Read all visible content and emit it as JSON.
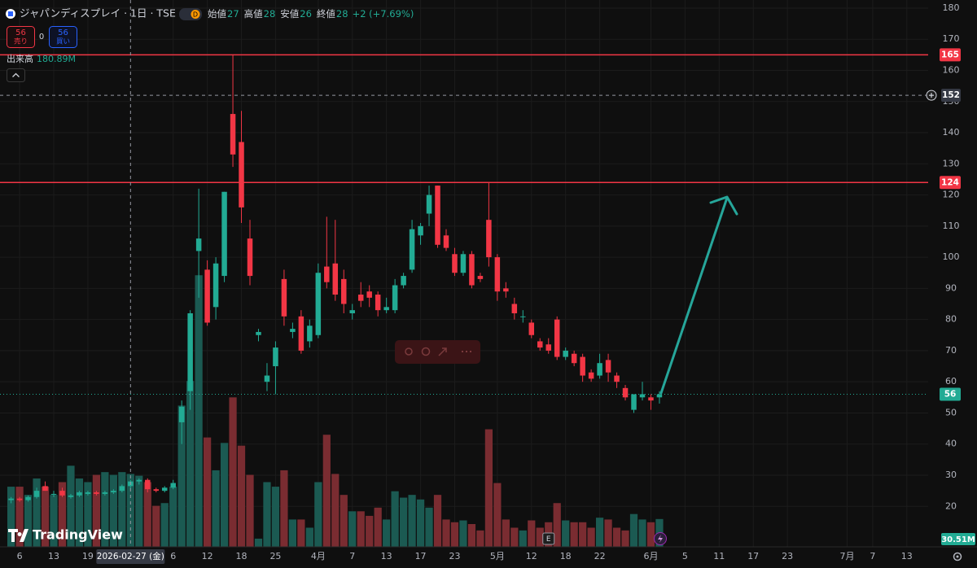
{
  "chart_data": {
    "type": "candlestick",
    "title": "ジャパンディスプレイ · 1日 · TSE",
    "badge": "D",
    "ohlc_legend": [
      {
        "label": "始値",
        "value": "27"
      },
      {
        "label": "高値",
        "value": "28"
      },
      {
        "label": "安値",
        "value": "26"
      },
      {
        "label": "終値",
        "value": "28"
      }
    ],
    "change": "+2 (+7.69%)",
    "order_buttons": {
      "sell_price": "56",
      "sell_label": "売り",
      "spread": "0",
      "buy_price": "56",
      "buy_label": "買い"
    },
    "volume_legend": {
      "label": "出来高",
      "value": "180.89M"
    },
    "open": [
      22,
      22.5,
      22,
      23,
      26.5,
      24,
      25,
      23,
      23.5,
      24,
      24.5,
      24,
      24.5,
      25,
      26.5,
      28,
      28.5,
      25.5,
      25,
      26,
      47,
      57,
      102,
      96,
      84,
      94,
      146,
      137,
      106,
      75,
      60,
      65,
      93,
      76,
      81,
      73,
      75,
      97,
      98,
      93,
      82,
      88,
      89,
      88,
      83,
      83,
      91,
      96,
      107,
      114,
      123,
      107,
      101,
      95,
      101,
      94,
      112,
      100,
      90,
      85,
      81,
      79,
      73,
      72,
      80,
      68,
      69,
      68,
      63,
      62,
      67,
      62,
      58,
      51,
      55,
      55,
      55
    ],
    "high": [
      23,
      23,
      23.5,
      26,
      28,
      25,
      26,
      24,
      25,
      25,
      25,
      25,
      25.5,
      27,
      28.5,
      29,
      29,
      26,
      26.5,
      28.5,
      54,
      83,
      122,
      99,
      100,
      121,
      165,
      147,
      112,
      77,
      66,
      73,
      96,
      79,
      83,
      80,
      98,
      113,
      112,
      96,
      85,
      92,
      91,
      89,
      87,
      93,
      95,
      112,
      111,
      123,
      123,
      109,
      103,
      102,
      102,
      95,
      124,
      101,
      92,
      87,
      83,
      80,
      74,
      74,
      81,
      71,
      70,
      69,
      64,
      69,
      69,
      63,
      59,
      56,
      60,
      56,
      57
    ],
    "low": [
      21,
      21.5,
      21.5,
      22.5,
      25,
      23,
      23,
      22.5,
      23,
      23.5,
      23.5,
      23.5,
      24,
      24.5,
      25.5,
      27,
      24.5,
      24.5,
      24.5,
      25.5,
      40,
      51,
      87,
      78,
      80,
      92,
      129,
      111,
      91,
      73,
      57,
      56,
      78,
      74,
      69,
      71,
      74,
      90,
      86,
      82,
      80,
      84,
      84,
      81,
      82,
      82,
      90,
      95,
      104,
      110,
      103,
      102,
      94,
      94,
      90,
      92,
      97,
      86,
      87,
      80,
      79,
      74,
      70,
      69,
      67,
      67,
      65,
      60,
      60,
      61,
      60,
      58,
      54,
      50,
      54,
      51,
      53
    ],
    "close": [
      22.5,
      22,
      23,
      25,
      25,
      24,
      23.5,
      23.5,
      24.5,
      24.5,
      24,
      24.5,
      25,
      26.5,
      28,
      28.5,
      25.5,
      25,
      26,
      27.5,
      52,
      82,
      106,
      79,
      98,
      121,
      133,
      116,
      94,
      76,
      62,
      71,
      81,
      77,
      70,
      78,
      95,
      92,
      88,
      85,
      83,
      86,
      87,
      83,
      84,
      91,
      94,
      109,
      110,
      120,
      104,
      103,
      95,
      101,
      91,
      93,
      100,
      89,
      89,
      82,
      81,
      75,
      71,
      70,
      68,
      70,
      66,
      62,
      61,
      66,
      63,
      60,
      55,
      56,
      56,
      54,
      56
    ],
    "volume": [
      66,
      66,
      57,
      75,
      66,
      57,
      71,
      89,
      75,
      71,
      79,
      82,
      79,
      82,
      80,
      78,
      71,
      45,
      48,
      66,
      155,
      182,
      298,
      120,
      84,
      114,
      164,
      111,
      79,
      9,
      71,
      66,
      84,
      30,
      30,
      21,
      71,
      123,
      80,
      57,
      39,
      39,
      34,
      43,
      30,
      61,
      54,
      57,
      52,
      43,
      57,
      30,
      27,
      29,
      25,
      18,
      129,
      70,
      30,
      21,
      18,
      29,
      21,
      27,
      48,
      29,
      27,
      27,
      21,
      32,
      30,
      21,
      18,
      36,
      30,
      27,
      30.51
    ],
    "volume_last_label": "30.51M",
    "xlim": [
      -1.3,
      107.5
    ],
    "xticks": [
      {
        "value": 1,
        "label": "6"
      },
      {
        "value": 5,
        "label": "13"
      },
      {
        "value": 9,
        "label": "19"
      },
      {
        "value": 19,
        "label": "6"
      },
      {
        "value": 23,
        "label": "12"
      },
      {
        "value": 27,
        "label": "18"
      },
      {
        "value": 31,
        "label": "25"
      },
      {
        "value": 36,
        "label": "4月"
      },
      {
        "value": 40,
        "label": "7"
      },
      {
        "value": 44,
        "label": "13"
      },
      {
        "value": 48,
        "label": "17"
      },
      {
        "value": 52,
        "label": "23"
      },
      {
        "value": 57,
        "label": "5月"
      },
      {
        "value": 61,
        "label": "12"
      },
      {
        "value": 65,
        "label": "18"
      },
      {
        "value": 69,
        "label": "22"
      },
      {
        "value": 75,
        "label": "6月"
      },
      {
        "value": 79,
        "label": "5"
      },
      {
        "value": 83,
        "label": "11"
      },
      {
        "value": 87,
        "label": "17"
      },
      {
        "value": 91,
        "label": "23"
      },
      {
        "value": 98,
        "label": "7月"
      },
      {
        "value": 101,
        "label": "7"
      },
      {
        "value": 105,
        "label": "13"
      }
    ],
    "ylim": [
      7,
      182.6
    ],
    "yticks": [
      20,
      30,
      40,
      50,
      60,
      70,
      80,
      90,
      100,
      110,
      120,
      130,
      140,
      150,
      160,
      170,
      180
    ],
    "vlim": [
      0,
      400
    ],
    "hlines": [
      {
        "value": 165,
        "color": "#f23645"
      },
      {
        "value": 124,
        "color": "#f23645"
      }
    ],
    "crosshair": {
      "x": 14,
      "label": "2026-02-27 (金)",
      "price": 152
    },
    "earnings_marker": {
      "x": 63,
      "label": "E"
    },
    "logo": "TradingView",
    "grid": true,
    "up_color": "#22ab94",
    "down_color": "#f23645",
    "volume_up_color": "#1b5a52",
    "volume_down_color": "#7a2c31"
  }
}
